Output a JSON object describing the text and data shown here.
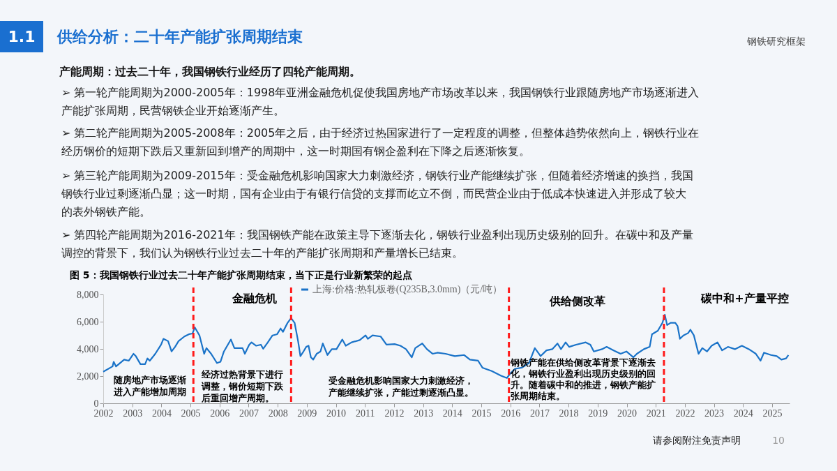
{
  "chart_data": {
    "type": "line",
    "title": "图 5：我国钢铁行业过去二十年产能扩张周期结束，当下正是行业新繁荣的起点",
    "series": [
      {
        "name": "上海:价格:热轧板卷(Q235B,3.0mm)（元/吨）",
        "color": "#1a73c8",
        "x": [
          2002.0,
          2002.32,
          2002.36,
          2002.44,
          2002.72,
          2002.88,
          2003.04,
          2003.12,
          2003.28,
          2003.44,
          2003.52,
          2003.6,
          2003.79,
          2003.99,
          2004.07,
          2004.23,
          2004.35,
          2004.47,
          2004.59,
          2004.79,
          2004.95,
          2005.07,
          2005.15,
          2005.31,
          2005.47,
          2005.55,
          2005.71,
          2005.91,
          2006.03,
          2006.15,
          2006.39,
          2006.51,
          2006.79,
          2006.87,
          2007.02,
          2007.1,
          2007.26,
          2007.42,
          2007.5,
          2007.66,
          2007.82,
          2007.98,
          2008.1,
          2008.18,
          2008.34,
          2008.46,
          2008.58,
          2008.7,
          2008.78,
          2008.86,
          2008.98,
          2009.06,
          2009.14,
          2009.22,
          2009.34,
          2009.47,
          2009.55,
          2009.71,
          2009.86,
          2010.02,
          2010.22,
          2010.34,
          2010.54,
          2010.82,
          2011.02,
          2011.1,
          2011.26,
          2011.54,
          2011.74,
          2012.02,
          2012.22,
          2012.41,
          2012.61,
          2012.73,
          2012.97,
          2013.13,
          2013.33,
          2013.49,
          2013.77,
          2014.09,
          2014.41,
          2014.61,
          2014.89,
          2015.04,
          2015.36,
          2015.68,
          2015.88,
          2016.0,
          2016.16,
          2016.4,
          2016.64,
          2016.84,
          2017.04,
          2017.24,
          2017.44,
          2017.62,
          2017.74,
          2017.9,
          2018.02,
          2018.26,
          2018.59,
          2018.75,
          2018.87,
          2019.15,
          2019.31,
          2019.55,
          2019.79,
          2019.99,
          2020.23,
          2020.35,
          2020.59,
          2020.79,
          2020.87,
          2021.07,
          2021.23,
          2021.31,
          2021.39,
          2021.51,
          2021.67,
          2021.75,
          2021.83,
          2021.95,
          2022.11,
          2022.19,
          2022.31,
          2022.43,
          2022.47,
          2022.6,
          2022.76,
          2022.92,
          2023.12,
          2023.28,
          2023.48,
          2023.72,
          2023.96,
          2024.2,
          2024.44,
          2024.6,
          2024.72,
          2024.96,
          2025.16,
          2025.32,
          2025.48,
          2025.56
        ],
        "values": [
          2320,
          2710,
          3050,
          2710,
          3210,
          3130,
          3640,
          3470,
          2880,
          2880,
          3300,
          3130,
          3640,
          4310,
          4740,
          4570,
          3810,
          4150,
          4570,
          4910,
          5080,
          5130,
          5580,
          4990,
          3640,
          4060,
          3640,
          2960,
          3050,
          3810,
          4690,
          4060,
          4060,
          3640,
          4310,
          4480,
          4230,
          4310,
          4010,
          4480,
          4990,
          5080,
          5500,
          5250,
          5920,
          6260,
          5920,
          4570,
          3470,
          3720,
          4150,
          4230,
          3380,
          3210,
          3640,
          3810,
          4400,
          3550,
          3980,
          3980,
          4690,
          4230,
          4480,
          4650,
          4990,
          4740,
          4990,
          4910,
          4310,
          4350,
          4230,
          3980,
          3380,
          4060,
          4400,
          3980,
          3640,
          3720,
          3640,
          3470,
          3550,
          3210,
          3130,
          2620,
          2370,
          2030,
          1860,
          2200,
          2540,
          2620,
          2960,
          4060,
          3470,
          3890,
          3980,
          4400,
          3980,
          4480,
          4150,
          4310,
          4480,
          4310,
          3810,
          3980,
          4150,
          3890,
          3640,
          3810,
          3380,
          3640,
          3980,
          4150,
          5080,
          5330,
          5920,
          6510,
          5750,
          5920,
          5920,
          5670,
          4740,
          4990,
          5160,
          5410,
          4990,
          3980,
          3640,
          4060,
          3810,
          4230,
          4480,
          3890,
          4150,
          3980,
          4230,
          3980,
          3640,
          3130,
          3720,
          3550,
          3470,
          3210,
          3300,
          3550
        ]
      }
    ],
    "xlim": [
      2002,
      2025.6
    ],
    "xticks": [
      2002,
      2003,
      2004,
      2005,
      2006,
      2007,
      2008,
      2009,
      2010,
      2011,
      2012,
      2013,
      2014,
      2015,
      2016,
      2017,
      2018,
      2019,
      2020,
      2021,
      2022,
      2023,
      2024,
      2025
    ],
    "ylim": [
      0,
      8000
    ],
    "yticks": [
      0,
      {
        "value": 2000,
        "label": "2,000"
      },
      {
        "value": 4000,
        "label": "4,000"
      },
      {
        "value": 6000,
        "label": "6,000"
      },
      {
        "value": 8000,
        "label": "8,000"
      }
    ],
    "legend": "top",
    "line_style": "solid",
    "marker": "none",
    "ref_lines": [
      {
        "axis": "x",
        "value": 2005.1,
        "color": "#ff1a1a",
        "line_style": "dashed"
      },
      {
        "axis": "x",
        "value": 2008.46,
        "color": "#ff1a1a",
        "line_style": "dashed"
      },
      {
        "axis": "x",
        "value": 2015.95,
        "color": "#ff1a1a",
        "line_style": "dashed"
      },
      {
        "axis": "x",
        "value": 2021.28,
        "color": "#ff1a1a",
        "line_style": "dashed"
      }
    ],
    "annotations": [
      "1.1",
      "供给分析：二十年产能扩张周期结束",
      "钢铁研究框架",
      "产能周期：过去二十年，我国钢铁行业经历了四轮产能周期。",
      "➢ 第一轮产能周期为2000-2005年：1998年亚洲金融危机促使我国房地产市场改革以来，我国钢铁行业跟随房地产市场逐渐进入产能扩张周期，民营钢铁企业开始逐渐产生。",
      "➢ 第二轮产能周期为2005-2008年：2005年之后，由于经济过热国家进行了一定程度的调整，但整体趋势依然向上，钢铁行业在经历钢价的短期下跌后又重新回到增产的周期中，这一时期国有钢企盈利在下降之后逐渐恢复。",
      "➢ 第三轮产能周期为2009-2015年：受金融危机影响国家大力刺激经济，钢铁行业产能继续扩张，但随着经济增速的换挡，我国钢铁行业过剩逐渐凸显；这一时期，国有企业由于有银行信贷的支撑而屹立不倒，而民营企业由于低成本快速进入并形成了较大的表外钢铁产能。",
      "➢ 第四轮产能周期为2016-2021年：我国钢铁产能在政策主导下逐渐去化，钢铁行业盈利出现历史级别的回升。在碳中和及产量调控的背景下，我们认为钢铁行业过去二十年的产能扩张周期和产量增长已结束。",
      "金融危机",
      "供给侧改革",
      "碳中和+产量平控",
      "随房地产市场逐渐进入产能增加周期",
      "经济过热背景下进行调整，钢价短期下跌后重回增产周期。",
      "受金融危机影响国家大力刺激经济，产能继续扩张，产能过剩逐渐凸显。",
      "钢铁产能在供给侧改革背景下逐渐去化，钢铁行业盈利出现历史级别的回升。随着碳中和的推进，钢铁产能扩张周期结束。",
      "请参阅附注免责声明",
      "10"
    ]
  }
}
